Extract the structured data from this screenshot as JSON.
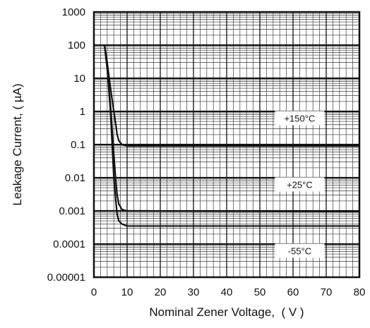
{
  "chart_data": {
    "type": "line",
    "xlabel": "Nominal Zener Voltage,  ( V )",
    "ylabel": "Leakage Current, ( µA)",
    "xlim": [
      0,
      80
    ],
    "ylim": [
      1e-05,
      1000
    ],
    "yscale": "log",
    "grid": true,
    "x_ticks": [
      0,
      10,
      20,
      30,
      40,
      50,
      60,
      70,
      80
    ],
    "x_tick_labels": [
      "0",
      "10",
      "20",
      "30",
      "40",
      "50",
      "60",
      "70",
      "80"
    ],
    "y_ticks": [
      1e-05,
      0.0001,
      0.001,
      0.01,
      0.1,
      1,
      10,
      100,
      1000
    ],
    "y_tick_labels": [
      "0.00001",
      "0.0001",
      "0.001",
      "0.01",
      "0.1",
      "1",
      "10",
      "100",
      "1000"
    ],
    "series": [
      {
        "name": "+150°C",
        "label_at": [
          62,
          0.6
        ],
        "x": [
          3.2,
          4.0,
          5.0,
          6.0,
          6.6,
          7.0,
          7.5,
          8.5,
          10,
          80
        ],
        "y": [
          100,
          30,
          5,
          1,
          0.4,
          0.2,
          0.13,
          0.1,
          0.09,
          0.09
        ]
      },
      {
        "name": "+25°C",
        "label_at": [
          62,
          0.006
        ],
        "x": [
          3.2,
          4.0,
          5.0,
          6.0,
          6.6,
          7.0,
          7.5,
          8.5,
          10,
          80
        ],
        "y": [
          100,
          20,
          1.5,
          0.05,
          0.008,
          0.003,
          0.0016,
          0.0011,
          0.001,
          0.00095
        ]
      },
      {
        "name": "-55°C",
        "label_at": [
          62,
          6e-05
        ],
        "x": [
          3.2,
          4.0,
          5.0,
          6.0,
          6.6,
          7.0,
          7.5,
          8.5,
          10,
          80
        ],
        "y": [
          100,
          20,
          1,
          0.01,
          0.002,
          0.0008,
          0.0005,
          0.0004,
          0.00035,
          0.00035
        ]
      }
    ]
  }
}
